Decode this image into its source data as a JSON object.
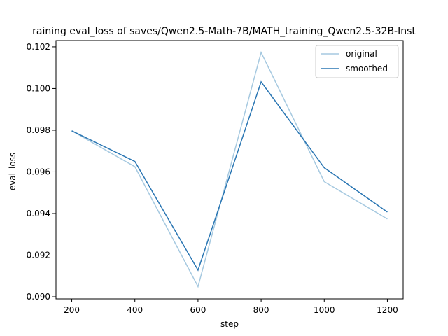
{
  "chart_data": {
    "type": "line",
    "title": "raining eval_loss of saves/Qwen2.5-Math-7B/MATH_training_Qwen2.5-32B-Inst",
    "xlabel": "step",
    "ylabel": "eval_loss",
    "xlim": [
      150,
      1250
    ],
    "ylim": [
      0.0899,
      0.1023
    ],
    "xticks": [
      200,
      400,
      600,
      800,
      1000,
      1200
    ],
    "xtick_labels": [
      "200",
      "400",
      "600",
      "800",
      "1000",
      "1200"
    ],
    "yticks": [
      0.09,
      0.092,
      0.094,
      0.096,
      0.098,
      0.1,
      0.102
    ],
    "ytick_labels": [
      "0.090",
      "0.092",
      "0.094",
      "0.096",
      "0.098",
      "0.100",
      "0.102"
    ],
    "grid": false,
    "legend": "top-right",
    "x": [
      200,
      400,
      600,
      800,
      1000,
      1200
    ],
    "series": [
      {
        "name": "original",
        "color": "#a6c9e0",
        "values": [
          0.09797,
          0.09625,
          0.09049,
          0.10173,
          0.09553,
          0.09374
        ]
      },
      {
        "name": "smoothed",
        "color": "#2a76b3",
        "values": [
          0.09797,
          0.0965,
          0.09128,
          0.10032,
          0.0962,
          0.09407
        ]
      }
    ]
  }
}
